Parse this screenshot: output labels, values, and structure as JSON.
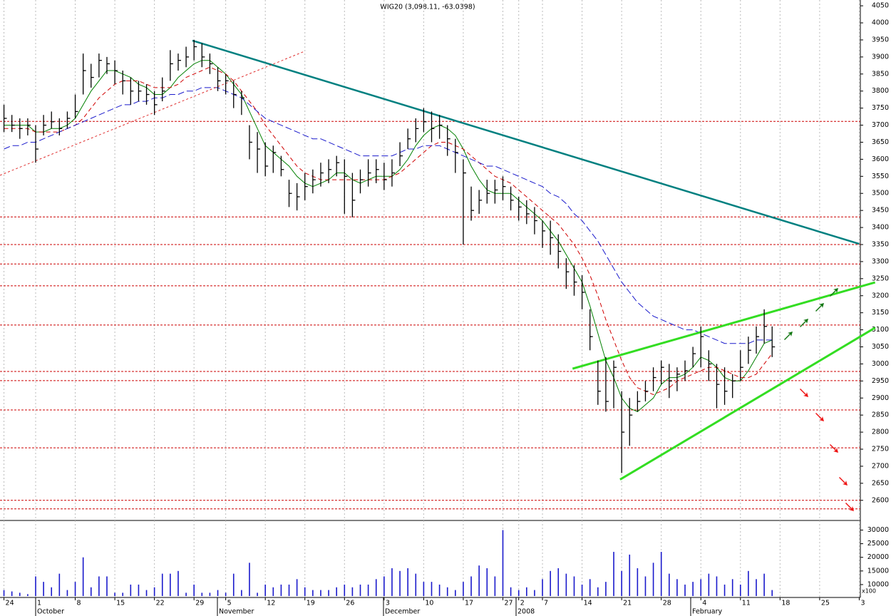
{
  "chart_data": {
    "type": "ohlc",
    "title": "WIG20 (3,098.11, -63.0398)",
    "categories": [
      "24",
      null,
      null,
      null,
      "1",
      null,
      null,
      null,
      null,
      "8",
      null,
      null,
      null,
      null,
      "15",
      null,
      null,
      null,
      null,
      "22",
      null,
      null,
      null,
      null,
      "29",
      null,
      null,
      null,
      "5",
      null,
      null,
      null,
      null,
      "12",
      null,
      null,
      null,
      null,
      "19",
      null,
      null,
      null,
      null,
      "26",
      null,
      null,
      null,
      null,
      "3",
      null,
      null,
      null,
      null,
      "10",
      null,
      null,
      null,
      null,
      "17",
      null,
      null,
      null,
      null,
      "27",
      null,
      "2",
      null,
      null,
      "7",
      null,
      null,
      null,
      null,
      "14",
      null,
      null,
      null,
      null,
      "21",
      null,
      null,
      null,
      null,
      "28",
      null,
      null,
      null,
      null,
      "4",
      null,
      null,
      null,
      null,
      "11",
      null,
      null,
      null,
      null,
      "18",
      null,
      null,
      null,
      null,
      "25",
      null,
      null,
      null,
      null,
      "3"
    ],
    "month_labels": [
      "October",
      "November",
      "December",
      "2008",
      "February"
    ],
    "high": [
      3760,
      3730,
      3720,
      3720,
      3700,
      3730,
      3740,
      3720,
      3740,
      3790,
      3910,
      3880,
      3910,
      3900,
      3890,
      3860,
      3840,
      3830,
      3820,
      3800,
      3840,
      3920,
      3910,
      3930,
      3950,
      3940,
      3910,
      3870,
      3850,
      3830,
      3800,
      3700,
      3680,
      3650,
      3640,
      3610,
      3540,
      3530,
      3560,
      3570,
      3590,
      3600,
      3610,
      3600,
      3560,
      3570,
      3600,
      3600,
      3590,
      3600,
      3650,
      3690,
      3720,
      3750,
      3740,
      3730,
      3700,
      3660,
      3600,
      3520,
      3510,
      3540,
      3540,
      3550,
      3520,
      3490,
      3480,
      3460,
      3420,
      3420,
      3380,
      3310,
      3290,
      3260,
      3160,
      3010,
      3020,
      3010,
      2920,
      2900,
      2920,
      2950,
      2990,
      3010,
      3000,
      2990,
      3010,
      3050,
      3110,
      3040,
      3000,
      2990,
      2970,
      3040,
      3080,
      3110,
      3160,
      3110,
      null,
      null,
      null,
      null,
      null,
      null,
      null,
      null,
      null,
      null,
      null
    ],
    "low": [
      3680,
      3680,
      3660,
      3670,
      3590,
      3670,
      3690,
      3670,
      3690,
      3720,
      3790,
      3810,
      3840,
      3850,
      3820,
      3790,
      3760,
      3770,
      3760,
      3730,
      3770,
      3830,
      3860,
      3870,
      3890,
      3870,
      3850,
      3800,
      3790,
      3750,
      3730,
      3600,
      3560,
      3550,
      3560,
      3550,
      3460,
      3450,
      3480,
      3500,
      3520,
      3530,
      3550,
      3440,
      3430,
      3500,
      3520,
      3530,
      3510,
      3520,
      3580,
      3630,
      3650,
      3680,
      3650,
      3660,
      3610,
      3560,
      3350,
      3420,
      3440,
      3470,
      3470,
      3480,
      3450,
      3420,
      3410,
      3380,
      3340,
      3320,
      3280,
      3220,
      3200,
      3160,
      3040,
      2880,
      2860,
      2870,
      2680,
      2760,
      2860,
      2890,
      2920,
      2940,
      2900,
      2920,
      2950,
      2990,
      2990,
      2950,
      2870,
      2880,
      2900,
      2950,
      3000,
      3030,
      3060,
      3020,
      null,
      null,
      null,
      null,
      null,
      null,
      null,
      null,
      null,
      null,
      null
    ],
    "close": [
      3720,
      3700,
      3690,
      3700,
      3630,
      3700,
      3710,
      3690,
      3720,
      3740,
      3860,
      3840,
      3890,
      3880,
      3860,
      3830,
      3800,
      3800,
      3790,
      3760,
      3800,
      3880,
      3890,
      3900,
      3930,
      3900,
      3880,
      3830,
      3830,
      3790,
      3780,
      3650,
      3630,
      3580,
      3620,
      3570,
      3500,
      3490,
      3520,
      3540,
      3560,
      3570,
      3590,
      3550,
      3480,
      3540,
      3560,
      3570,
      3540,
      3560,
      3610,
      3660,
      3690,
      3710,
      3690,
      3700,
      3660,
      3620,
      3560,
      3450,
      3480,
      3500,
      3510,
      3520,
      3480,
      3460,
      3440,
      3420,
      3390,
      3370,
      3330,
      3270,
      3240,
      3210,
      3080,
      2920,
      2890,
      2990,
      2800,
      2850,
      2890,
      2920,
      2960,
      2990,
      2950,
      2970,
      2980,
      3030,
      3080,
      3000,
      2940,
      2920,
      2950,
      2990,
      3040,
      3080,
      3110,
      3050,
      null,
      null,
      null,
      null,
      null,
      null,
      null,
      null,
      null,
      null,
      null
    ],
    "bar_color": "#000000",
    "series": [
      {
        "color": "#008000",
        "dash": "",
        "values": [
          3700,
          3700,
          3700,
          3700,
          3680,
          3680,
          3690,
          3690,
          3700,
          3720,
          3760,
          3800,
          3830,
          3860,
          3860,
          3850,
          3840,
          3820,
          3810,
          3790,
          3790,
          3810,
          3840,
          3860,
          3880,
          3890,
          3890,
          3870,
          3850,
          3820,
          3790,
          3740,
          3690,
          3640,
          3620,
          3600,
          3580,
          3550,
          3530,
          3520,
          3530,
          3540,
          3560,
          3560,
          3540,
          3530,
          3540,
          3550,
          3550,
          3550,
          3570,
          3600,
          3640,
          3670,
          3690,
          3700,
          3690,
          3670,
          3630,
          3580,
          3540,
          3510,
          3500,
          3500,
          3500,
          3480,
          3460,
          3440,
          3420,
          3390,
          3360,
          3320,
          3280,
          3240,
          3170,
          3090,
          3010,
          2960,
          2900,
          2870,
          2860,
          2880,
          2900,
          2940,
          2960,
          2960,
          2970,
          2990,
          3020,
          3010,
          2990,
          2960,
          2950,
          2950,
          2980,
          3020,
          3060,
          3070,
          null,
          null,
          null,
          null,
          null,
          null,
          null,
          null,
          null,
          null,
          null
        ]
      },
      {
        "color": "#d00000",
        "dash": "6 4",
        "values": [
          3690,
          3690,
          3690,
          3690,
          3680,
          3680,
          3680,
          3680,
          3690,
          3700,
          3720,
          3750,
          3780,
          3800,
          3820,
          3830,
          3830,
          3830,
          3820,
          3810,
          3810,
          3810,
          3820,
          3840,
          3850,
          3860,
          3870,
          3860,
          3850,
          3830,
          3800,
          3770,
          3740,
          3700,
          3670,
          3640,
          3610,
          3580,
          3560,
          3550,
          3540,
          3540,
          3540,
          3540,
          3540,
          3540,
          3540,
          3540,
          3540,
          3550,
          3560,
          3580,
          3600,
          3620,
          3640,
          3650,
          3650,
          3640,
          3630,
          3610,
          3590,
          3570,
          3550,
          3540,
          3530,
          3510,
          3490,
          3470,
          3450,
          3430,
          3410,
          3380,
          3350,
          3310,
          3260,
          3200,
          3130,
          3070,
          3010,
          2960,
          2930,
          2920,
          2910,
          2920,
          2930,
          2950,
          2960,
          2970,
          2980,
          2990,
          2990,
          2980,
          2970,
          2960,
          2960,
          2970,
          3000,
          3030,
          null,
          null,
          null,
          null,
          null,
          null,
          null,
          null,
          null,
          null,
          null
        ]
      },
      {
        "color": "#1a1acc",
        "dash": "9 4",
        "values": [
          3630,
          3640,
          3640,
          3650,
          3650,
          3660,
          3670,
          3680,
          3690,
          3700,
          3710,
          3720,
          3730,
          3740,
          3750,
          3760,
          3760,
          3770,
          3770,
          3780,
          3780,
          3790,
          3790,
          3800,
          3800,
          3810,
          3810,
          3810,
          3800,
          3790,
          3780,
          3760,
          3740,
          3720,
          3710,
          3700,
          3690,
          3680,
          3670,
          3660,
          3660,
          3650,
          3640,
          3630,
          3620,
          3610,
          3610,
          3610,
          3610,
          3610,
          3620,
          3630,
          3630,
          3640,
          3640,
          3640,
          3630,
          3620,
          3610,
          3600,
          3590,
          3580,
          3580,
          3570,
          3560,
          3550,
          3540,
          3530,
          3520,
          3500,
          3490,
          3470,
          3440,
          3420,
          3390,
          3360,
          3320,
          3280,
          3240,
          3210,
          3180,
          3160,
          3140,
          3130,
          3120,
          3110,
          3100,
          3100,
          3090,
          3080,
          3070,
          3060,
          3060,
          3060,
          3060,
          3070,
          3070,
          3070,
          null,
          null,
          null,
          null,
          null,
          null,
          null,
          null,
          null,
          null,
          null
        ]
      }
    ],
    "ylim": [
      2541,
      4067
    ],
    "yticks": [
      2600,
      2650,
      2700,
      2750,
      2800,
      2850,
      2900,
      2950,
      3000,
      3050,
      3100,
      3150,
      3200,
      3250,
      3300,
      3350,
      3400,
      3450,
      3500,
      3550,
      3600,
      3650,
      3700,
      3750,
      3800,
      3850,
      3900,
      3950,
      4000,
      4050
    ],
    "levels": [
      3711,
      3431,
      3350,
      3293,
      3229,
      3114,
      2978,
      2951,
      2865,
      2754,
      2600,
      2575
    ],
    "level_color": "#cc0000",
    "trendlines": [
      {
        "color": "#008080",
        "width": 2.5,
        "dash": "",
        "points": [
          [
            23.8,
            3948
          ],
          [
            108,
            3352
          ]
        ]
      },
      {
        "color": "#e03030",
        "width": 1,
        "dash": "3 3",
        "points": [
          [
            -0.5,
            3553
          ],
          [
            37.9,
            3916
          ]
        ]
      },
      {
        "color": "#33dd22",
        "width": 3,
        "dash": "",
        "points": [
          [
            71.8,
            2986
          ],
          [
            110,
            3239
          ]
        ]
      },
      {
        "color": "#33dd22",
        "width": 3,
        "dash": "",
        "points": [
          [
            77.8,
            2661
          ],
          [
            110,
            3106
          ]
        ]
      }
    ],
    "volume": {
      "color": "#1a1acc",
      "unit": "x100",
      "values": [
        8000,
        7500,
        7000,
        6500,
        13000,
        11000,
        9000,
        14000,
        8000,
        11000,
        20000,
        9000,
        13000,
        13000,
        7000,
        7000,
        10000,
        10000,
        8000,
        9000,
        14000,
        14000,
        15000,
        7000,
        10000,
        7000,
        7000,
        8000,
        7000,
        14000,
        8000,
        18000,
        7000,
        10000,
        9000,
        10000,
        10000,
        12000,
        9000,
        8000,
        8000,
        8000,
        9000,
        10000,
        9000,
        10000,
        10000,
        12000,
        13000,
        16000,
        15000,
        16000,
        14000,
        11000,
        11000,
        10000,
        9000,
        8000,
        11000,
        13000,
        17000,
        16000,
        13000,
        30000,
        9000,
        8000,
        9000,
        8000,
        12000,
        15000,
        16000,
        14000,
        13000,
        10000,
        12000,
        9000,
        11000,
        22000,
        15000,
        21000,
        16000,
        13000,
        18000,
        22000,
        14000,
        12000,
        10000,
        11000,
        12000,
        14000,
        13000,
        10000,
        12000,
        10000,
        15000,
        12000,
        14000,
        8000,
        null,
        null,
        null,
        null,
        null,
        null,
        null,
        null,
        null,
        null,
        null
      ],
      "ylim": [
        5800,
        33000
      ],
      "yticks": [
        10000,
        15000,
        20000,
        25000,
        30000
      ]
    }
  }
}
